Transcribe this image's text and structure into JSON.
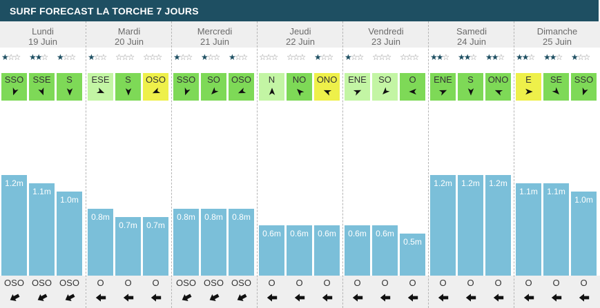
{
  "header": {
    "title": "SURF FORECAST LA TORCHE 7 JOURS"
  },
  "colors": {
    "wind_strong": "#7ed957",
    "wind_light": "#c3f5a4",
    "wind_yellow": "#eef04a",
    "bar": "#7bbfd9"
  },
  "chart_data": {
    "type": "bar",
    "title": "SURF FORECAST LA TORCHE 7 JOURS",
    "unit": "m",
    "max": 1.2,
    "days": [
      {
        "name": "Lundi",
        "date": "19 Juin",
        "slots": [
          {
            "stars": 1,
            "wind": "SSO",
            "wind_color": "strong",
            "wind_angle": 200,
            "height": 1.2,
            "height_label": "1.2m",
            "swell": "OSO",
            "swell_angle": 242
          },
          {
            "stars": 2,
            "wind": "SSE",
            "wind_color": "strong",
            "wind_angle": 160,
            "height": 1.1,
            "height_label": "1.1m",
            "swell": "OSO",
            "swell_angle": 242
          },
          {
            "stars": 1,
            "wind": "S",
            "wind_color": "strong",
            "wind_angle": 180,
            "height": 1.0,
            "height_label": "1.0m",
            "swell": "OSO",
            "swell_angle": 242
          }
        ]
      },
      {
        "name": "Mardi",
        "date": "20 Juin",
        "slots": [
          {
            "stars": 1,
            "wind": "ESE",
            "wind_color": "light",
            "wind_angle": 112,
            "height": 0.8,
            "height_label": "0.8m",
            "swell": "O",
            "swell_angle": 270
          },
          {
            "stars": 0,
            "wind": "S",
            "wind_color": "strong",
            "wind_angle": 180,
            "height": 0.7,
            "height_label": "0.7m",
            "swell": "O",
            "swell_angle": 270
          },
          {
            "stars": 0,
            "wind": "OSO",
            "wind_color": "yellow",
            "wind_angle": 247,
            "height": 0.7,
            "height_label": "0.7m",
            "swell": "O",
            "swell_angle": 270
          }
        ]
      },
      {
        "name": "Mercredi",
        "date": "21 Juin",
        "slots": [
          {
            "stars": 1,
            "wind": "SSO",
            "wind_color": "strong",
            "wind_angle": 200,
            "height": 0.8,
            "height_label": "0.8m",
            "swell": "OSO",
            "swell_angle": 242
          },
          {
            "stars": 1,
            "wind": "SO",
            "wind_color": "strong",
            "wind_angle": 225,
            "height": 0.8,
            "height_label": "0.8m",
            "swell": "OSO",
            "swell_angle": 242
          },
          {
            "stars": 1,
            "wind": "OSO",
            "wind_color": "strong",
            "wind_angle": 247,
            "height": 0.8,
            "height_label": "0.8m",
            "swell": "OSO",
            "swell_angle": 242
          }
        ]
      },
      {
        "name": "Jeudi",
        "date": "22 Juin",
        "slots": [
          {
            "stars": 0,
            "wind": "N",
            "wind_color": "light",
            "wind_angle": 0,
            "height": 0.6,
            "height_label": "0.6m",
            "swell": "O",
            "swell_angle": 270
          },
          {
            "stars": 0,
            "wind": "NO",
            "wind_color": "strong",
            "wind_angle": 315,
            "height": 0.6,
            "height_label": "0.6m",
            "swell": "O",
            "swell_angle": 270
          },
          {
            "stars": 1,
            "wind": "ONO",
            "wind_color": "yellow",
            "wind_angle": 292,
            "height": 0.6,
            "height_label": "0.6m",
            "swell": "O",
            "swell_angle": 270
          }
        ]
      },
      {
        "name": "Vendredi",
        "date": "23 Juin",
        "slots": [
          {
            "stars": 1,
            "wind": "ENE",
            "wind_color": "light",
            "wind_angle": 67,
            "height": 0.6,
            "height_label": "0.6m",
            "swell": "O",
            "swell_angle": 270
          },
          {
            "stars": 0,
            "wind": "SO",
            "wind_color": "light",
            "wind_angle": 225,
            "height": 0.6,
            "height_label": "0.6m",
            "swell": "O",
            "swell_angle": 270
          },
          {
            "stars": 0,
            "wind": "O",
            "wind_color": "strong",
            "wind_angle": 270,
            "height": 0.5,
            "height_label": "0.5m",
            "swell": "O",
            "swell_angle": 270
          }
        ]
      },
      {
        "name": "Samedi",
        "date": "24 Juin",
        "slots": [
          {
            "stars": 2,
            "wind": "ENE",
            "wind_color": "strong",
            "wind_angle": 67,
            "height": 1.2,
            "height_label": "1.2m",
            "swell": "O",
            "swell_angle": 270
          },
          {
            "stars": 2,
            "wind": "S",
            "wind_color": "strong",
            "wind_angle": 180,
            "height": 1.2,
            "height_label": "1.2m",
            "swell": "O",
            "swell_angle": 270
          },
          {
            "stars": 2,
            "wind": "ONO",
            "wind_color": "strong",
            "wind_angle": 292,
            "height": 1.2,
            "height_label": "1.2m",
            "swell": "O",
            "swell_angle": 270
          }
        ]
      },
      {
        "name": "Dimanche",
        "date": "25 Juin",
        "slots": [
          {
            "stars": 2,
            "wind": "E",
            "wind_color": "yellow",
            "wind_angle": 90,
            "height": 1.1,
            "height_label": "1.1m",
            "swell": "O",
            "swell_angle": 270
          },
          {
            "stars": 2,
            "wind": "SE",
            "wind_color": "strong",
            "wind_angle": 135,
            "height": 1.1,
            "height_label": "1.1m",
            "swell": "O",
            "swell_angle": 270
          },
          {
            "stars": 1,
            "wind": "SSO",
            "wind_color": "strong",
            "wind_angle": 200,
            "height": 1.0,
            "height_label": "1.0m",
            "swell": "O",
            "swell_angle": 270
          }
        ]
      }
    ]
  }
}
